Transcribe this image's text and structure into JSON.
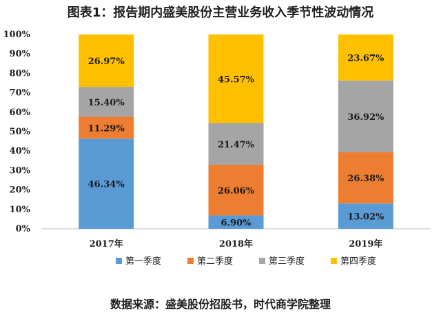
{
  "title": "图表1：报告期内盛美股份主营业务收入季节性波动情况",
  "source": "数据来源：盛美股份招股书，时代商学院整理",
  "chart_data": {
    "type": "bar",
    "stacked": true,
    "categories": [
      "2017年",
      "2018年",
      "2019年"
    ],
    "series": [
      {
        "name": "第一季度",
        "color": "#5B9BD5",
        "values": [
          46.34,
          6.9,
          13.02
        ],
        "labels": [
          "46.34%",
          "6.90%",
          "13.02%"
        ]
      },
      {
        "name": "第二季度",
        "color": "#ED7D31",
        "values": [
          11.29,
          26.06,
          26.38
        ],
        "labels": [
          "11.29%",
          "26.06%",
          "26.38%"
        ]
      },
      {
        "name": "第三季度",
        "color": "#A5A5A5",
        "values": [
          15.4,
          21.47,
          36.92
        ],
        "labels": [
          "15.40%",
          "21.47%",
          "36.92%"
        ]
      },
      {
        "name": "第四季度",
        "color": "#FFC000",
        "values": [
          26.97,
          45.57,
          23.67
        ],
        "labels": [
          "26.97%",
          "45.57%",
          "23.67%"
        ]
      }
    ],
    "yticks": [
      "0%",
      "10%",
      "20%",
      "30%",
      "40%",
      "50%",
      "60%",
      "70%",
      "80%",
      "90%",
      "100%"
    ],
    "ylim": [
      0,
      100
    ],
    "grid": false,
    "legend_position": "bottom"
  }
}
